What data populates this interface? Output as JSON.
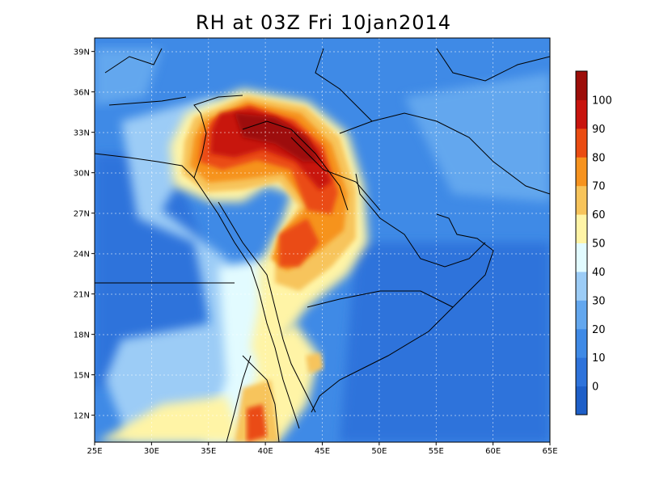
{
  "title": "RH at 03Z Fri 10jan2014",
  "map": {
    "lon_range": [
      25,
      65
    ],
    "lat_range": [
      10,
      40
    ],
    "lon_ticks": [
      "25E",
      "30E",
      "35E",
      "40E",
      "45E",
      "50E",
      "55E",
      "60E",
      "65E"
    ],
    "lat_ticks": [
      "39N",
      "36N",
      "33N",
      "30N",
      "27N",
      "24N",
      "21N",
      "18N",
      "15N",
      "12N"
    ],
    "grid": true
  },
  "colorbar": {
    "labels": [
      "0",
      "10",
      "20",
      "30",
      "40",
      "50",
      "60",
      "70",
      "80",
      "90",
      "100"
    ],
    "colors": [
      "#1e5fc8",
      "#2e73db",
      "#3f8ae6",
      "#63a7ee",
      "#9cccf6",
      "#e2fbff",
      "#fff4a6",
      "#f7c45b",
      "#f6931f",
      "#ea4c12",
      "#c8140e",
      "#9d0e0a"
    ]
  }
}
